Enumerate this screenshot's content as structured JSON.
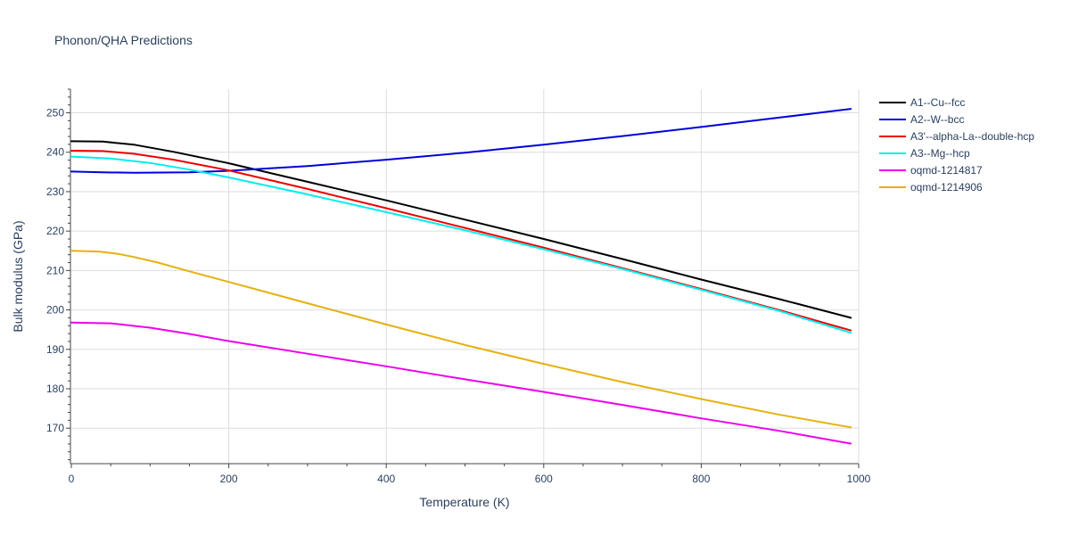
{
  "chart_data": {
    "type": "line",
    "title": "Phonon/QHA Predictions",
    "xlabel": "Temperature (K)",
    "ylabel": "Bulk modulus (GPa)",
    "xlim": [
      0,
      1000
    ],
    "ylim": [
      161,
      256
    ],
    "x_ticks": [
      0,
      200,
      400,
      600,
      800,
      1000
    ],
    "y_ticks": [
      170,
      180,
      190,
      200,
      210,
      220,
      230,
      240,
      250
    ],
    "grid": true,
    "legend_position": "right",
    "series": [
      {
        "name": "A1--Cu--fcc",
        "color": "#000000",
        "x": [
          0,
          40,
          80,
          130,
          200,
          300,
          400,
          500,
          600,
          700,
          800,
          900,
          990
        ],
        "y": [
          242.8,
          242.7,
          241.9,
          240.1,
          237.2,
          232.5,
          227.8,
          222.9,
          218.0,
          212.9,
          207.7,
          202.7,
          198.0
        ]
      },
      {
        "name": "A2--W--bcc",
        "color": "#0000dd",
        "x": [
          0,
          40,
          80,
          150,
          200,
          300,
          400,
          500,
          600,
          700,
          800,
          900,
          990
        ],
        "y": [
          235.1,
          234.9,
          234.8,
          234.9,
          235.3,
          236.5,
          238.1,
          239.9,
          241.9,
          244.1,
          246.4,
          248.8,
          251.0
        ]
      },
      {
        "name": "A3'--alpha-La--double-hcp",
        "color": "#ee0000",
        "x": [
          0,
          40,
          80,
          130,
          200,
          300,
          400,
          500,
          600,
          700,
          800,
          900,
          990
        ],
        "y": [
          240.4,
          240.3,
          239.6,
          238.1,
          235.4,
          230.7,
          225.8,
          220.8,
          215.8,
          210.6,
          205.3,
          199.9,
          194.8
        ]
      },
      {
        "name": "A3--Mg--hcp",
        "color": "#00eeee",
        "x": [
          0,
          50,
          100,
          150,
          200,
          300,
          400,
          500,
          600,
          700,
          800,
          900,
          990
        ],
        "y": [
          238.9,
          238.4,
          237.3,
          235.6,
          233.6,
          229.3,
          224.8,
          220.2,
          215.4,
          210.4,
          205.1,
          199.7,
          194.2
        ]
      },
      {
        "name": "oqmd-1214817",
        "color": "#ee00ee",
        "x": [
          0,
          50,
          100,
          150,
          200,
          300,
          400,
          500,
          600,
          700,
          800,
          900,
          990
        ],
        "y": [
          196.8,
          196.6,
          195.5,
          193.9,
          192.1,
          188.9,
          185.7,
          182.4,
          179.2,
          175.9,
          172.5,
          169.3,
          166.1
        ]
      },
      {
        "name": "oqmd-1214906",
        "color": "#e6b010",
        "x": [
          0,
          35,
          60,
          80,
          110,
          150,
          200,
          300,
          400,
          500,
          600,
          700,
          800,
          900,
          990
        ],
        "y": [
          215.0,
          214.8,
          214.2,
          213.4,
          212.0,
          209.8,
          207.1,
          201.7,
          196.3,
          191.1,
          186.3,
          181.7,
          177.4,
          173.4,
          170.2
        ]
      }
    ]
  }
}
